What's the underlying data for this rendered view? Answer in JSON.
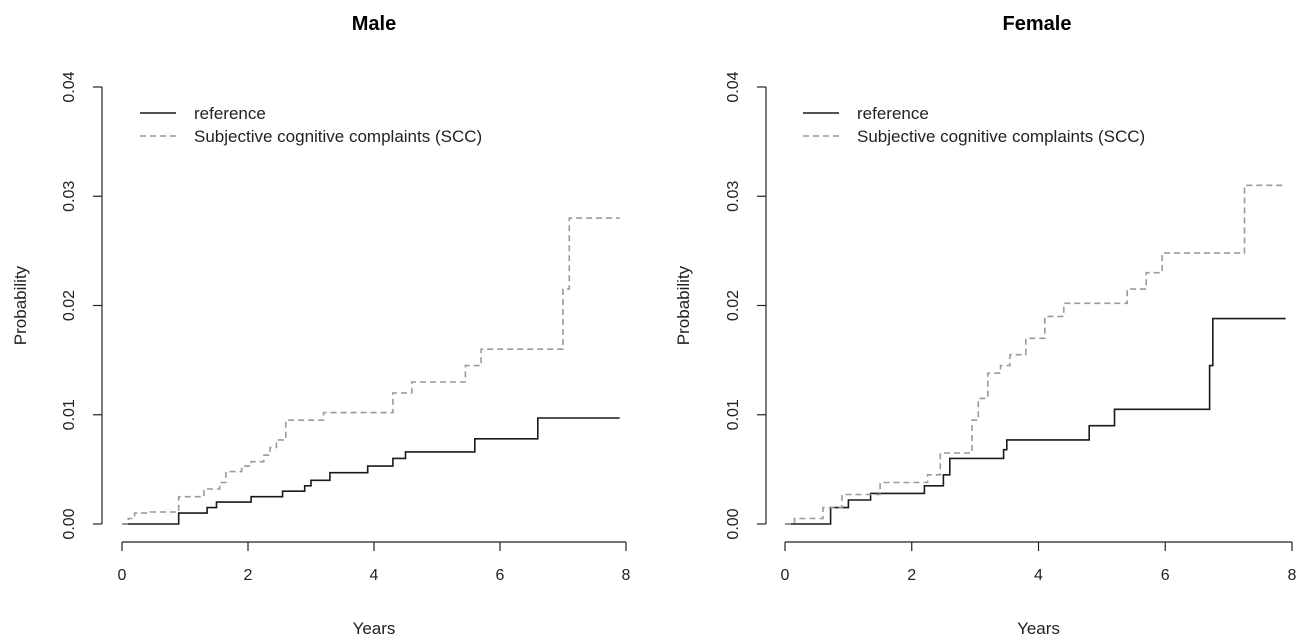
{
  "chart_data": [
    {
      "type": "line",
      "title": "Male",
      "xlabel": "Years",
      "ylabel": "Probability",
      "xlim": [
        0,
        8
      ],
      "ylim": [
        0,
        0.04
      ],
      "xticks": [
        "0",
        "2",
        "4",
        "6",
        "8"
      ],
      "yticks": [
        "0.00",
        "0.01",
        "0.02",
        "0.03",
        "0.04"
      ],
      "grid": false,
      "legend_position": "top-left",
      "series": [
        {
          "name": "reference",
          "style": "solid",
          "color": "#1a1a1a",
          "x": [
            0,
            0.85,
            0.9,
            1.35,
            1.5,
            1.95,
            2.05,
            2.45,
            2.55,
            2.9,
            3.0,
            3.3,
            3.9,
            4.3,
            4.5,
            5.6,
            6.6,
            7.9
          ],
          "y": [
            0,
            0,
            0.001,
            0.0015,
            0.002,
            0.002,
            0.0025,
            0.0025,
            0.003,
            0.0035,
            0.004,
            0.0047,
            0.0053,
            0.006,
            0.0066,
            0.0078,
            0.0097,
            0.0097
          ]
        },
        {
          "name": "Subjective cognitive complaints (SCC)",
          "style": "dashed",
          "color": "#9a9a9a",
          "x": [
            0,
            0.1,
            0.2,
            0.45,
            0.9,
            1.3,
            1.55,
            1.65,
            1.9,
            2.05,
            2.25,
            2.35,
            2.45,
            2.6,
            3.2,
            4.3,
            4.6,
            5.45,
            5.7,
            7.0,
            7.1,
            7.9
          ],
          "y": [
            0,
            0.0005,
            0.001,
            0.0011,
            0.0025,
            0.0032,
            0.0038,
            0.0048,
            0.0053,
            0.0057,
            0.0063,
            0.007,
            0.0077,
            0.0095,
            0.0102,
            0.012,
            0.013,
            0.0145,
            0.016,
            0.0215,
            0.028,
            0.028
          ]
        }
      ]
    },
    {
      "type": "line",
      "title": "Female",
      "xlabel": "Years",
      "ylabel": "Probability",
      "xlim": [
        0,
        8
      ],
      "ylim": [
        0,
        0.04
      ],
      "xticks": [
        "0",
        "2",
        "4",
        "6",
        "8"
      ],
      "yticks": [
        "0.00",
        "0.01",
        "0.02",
        "0.03",
        "0.04"
      ],
      "grid": false,
      "legend_position": "top-left",
      "series": [
        {
          "name": "reference",
          "style": "solid",
          "color": "#1a1a1a",
          "x": [
            0,
            0.65,
            0.72,
            1.0,
            1.35,
            2.2,
            2.5,
            2.6,
            3.45,
            3.5,
            4.8,
            5.2,
            6.7,
            6.75,
            7.9
          ],
          "y": [
            0,
            0,
            0.0015,
            0.0022,
            0.0028,
            0.0035,
            0.0045,
            0.006,
            0.0068,
            0.0077,
            0.009,
            0.0105,
            0.0145,
            0.0188,
            0.0188
          ]
        },
        {
          "name": "Subjective cognitive complaints (SCC)",
          "style": "dashed",
          "color": "#9a9a9a",
          "x": [
            0,
            0.15,
            0.6,
            0.9,
            1.5,
            2.25,
            2.45,
            2.95,
            3.05,
            3.2,
            3.4,
            3.55,
            3.8,
            4.1,
            4.4,
            5.4,
            5.7,
            5.95,
            7.25,
            7.9
          ],
          "y": [
            0,
            0.0005,
            0.0015,
            0.0027,
            0.0038,
            0.0045,
            0.0065,
            0.0095,
            0.0115,
            0.0138,
            0.0145,
            0.0155,
            0.017,
            0.019,
            0.0202,
            0.0215,
            0.023,
            0.0248,
            0.031,
            0.031
          ]
        }
      ]
    }
  ]
}
